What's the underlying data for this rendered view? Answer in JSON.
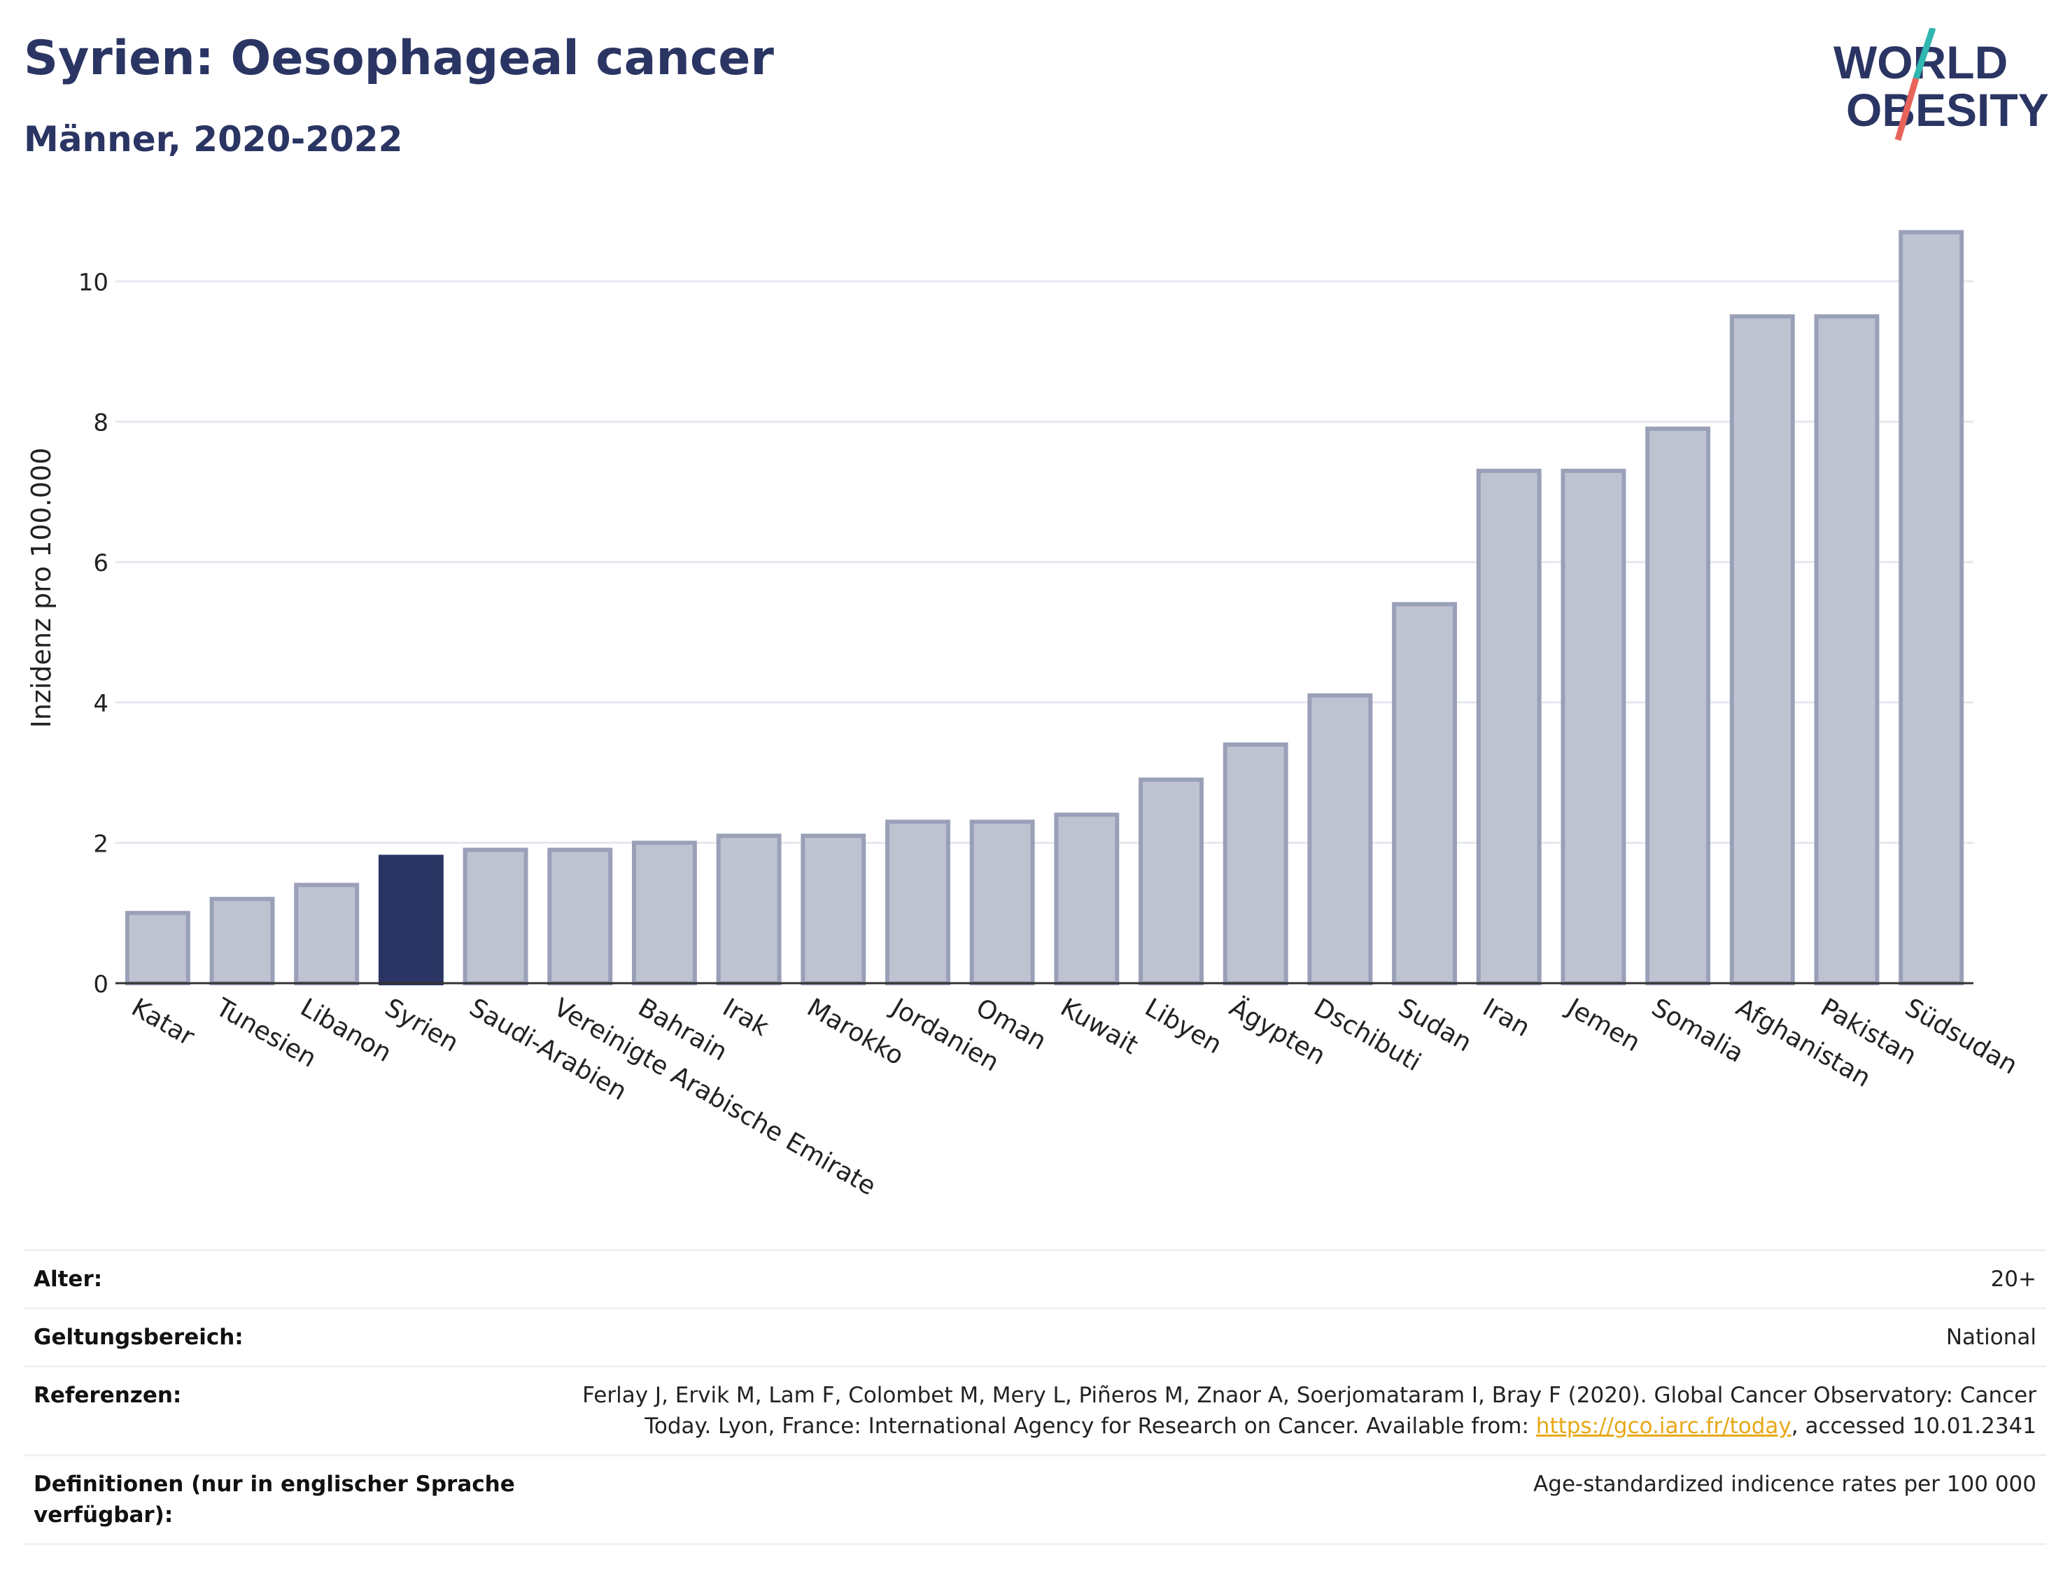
{
  "header": {
    "title": "Syrien: Oesophageal cancer",
    "subtitle": "Männer, 2020-2022",
    "logo_line1": "WORLD",
    "logo_line2": "OBESITY"
  },
  "colors": {
    "title": "#2b3563",
    "bar": "#bfc3d1",
    "bar_stroke": "#9aa0b8",
    "highlight": "#2b3563",
    "logo_text": "#2b3563",
    "logo_teal": "#2fb7b0",
    "logo_red": "#e8645a",
    "link": "#e7a817"
  },
  "chart_data": {
    "type": "bar",
    "ylabel": "Inzidenz pro 100.000",
    "ylim": [
      0,
      11
    ],
    "yticks": [
      0,
      2,
      4,
      6,
      8,
      10
    ],
    "grid": true,
    "highlight_category": "Syrien",
    "categories": [
      "Katar",
      "Tunesien",
      "Libanon",
      "Syrien",
      "Saudi-Arabien",
      "Vereinigte Arabische Emirate",
      "Bahrain",
      "Irak",
      "Marokko",
      "Jordanien",
      "Oman",
      "Kuwait",
      "Libyen",
      "Ägypten",
      "Dschibuti",
      "Sudan",
      "Iran",
      "Jemen",
      "Somalia",
      "Afghanistan",
      "Pakistan",
      "Südsudan"
    ],
    "values": [
      1.0,
      1.2,
      1.4,
      1.8,
      1.9,
      1.9,
      2.0,
      2.1,
      2.1,
      2.3,
      2.3,
      2.4,
      2.9,
      3.4,
      4.1,
      5.4,
      7.3,
      7.3,
      7.9,
      9.5,
      9.5,
      10.7
    ]
  },
  "meta": {
    "age_label": "Alter:",
    "age_value": "20+",
    "scope_label": "Geltungsbereich:",
    "scope_value": "National",
    "refs_label": "Referenzen:",
    "refs_text_1": "Ferlay J, Ervik M, Lam F, Colombet M, Mery L, Piñeros M, Znaor A, Soerjomataram I, Bray F (2020). Global Cancer Observatory: Cancer Today. Lyon, France: International Agency for Research on Cancer. Available from: ",
    "refs_link": "https://gco.iarc.fr/today",
    "refs_text_2": ", accessed 10.01.2341",
    "defs_label": "Definitionen (nur in englischer Sprache verfügbar):",
    "defs_value": "Age-standardized indicence rates per 100 000"
  }
}
